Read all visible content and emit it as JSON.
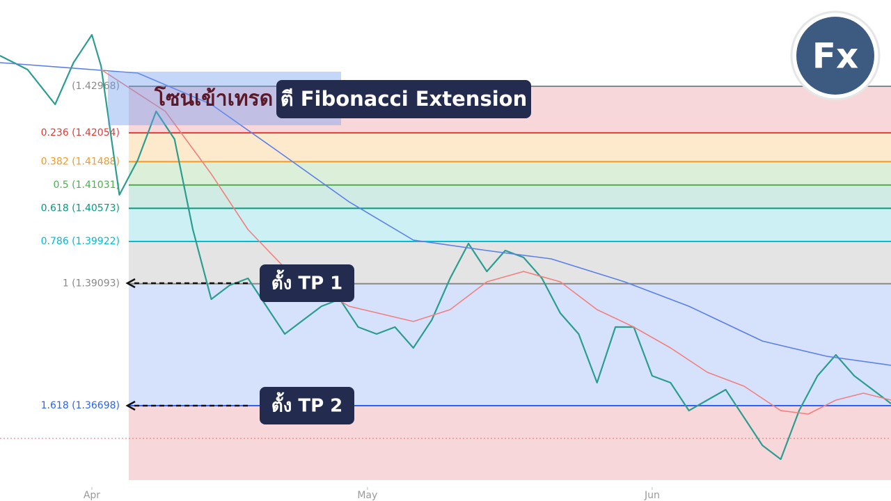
{
  "chart_data": {
    "type": "line",
    "xlim": [
      -10,
      87
    ],
    "ylim": [
      1.34827,
      1.44662
    ],
    "xticks": [
      {
        "value": 0,
        "label": "Apr"
      },
      {
        "value": 30,
        "label": "May"
      },
      {
        "value": 61,
        "label": "Jun"
      }
    ],
    "series": [
      {
        "color": "#2a9d8f",
        "x": [
          -10,
          -7,
          -4,
          -2,
          0,
          1,
          3,
          5,
          7,
          9,
          11,
          13,
          15,
          17,
          19,
          21,
          23,
          25,
          27,
          29,
          31,
          33,
          35,
          37,
          39,
          41,
          43,
          45,
          47,
          49,
          51,
          53,
          55,
          57,
          59,
          61,
          63,
          65,
          67,
          69,
          71,
          73,
          75,
          77,
          79,
          81,
          83,
          85,
          87
        ],
        "values": [
          1.43569,
          1.43296,
          1.42613,
          1.43432,
          1.43979,
          1.43364,
          1.40837,
          1.4152,
          1.42476,
          1.4193,
          1.40154,
          1.38788,
          1.39061,
          1.39198,
          1.38651,
          1.38105,
          1.38378,
          1.38651,
          1.38788,
          1.38242,
          1.38105,
          1.38242,
          1.37832,
          1.38378,
          1.39198,
          1.39881,
          1.39334,
          1.39744,
          1.39608,
          1.39198,
          1.38515,
          1.38105,
          1.37149,
          1.38242,
          1.38242,
          1.37285,
          1.37149,
          1.36602,
          1.36807,
          1.37012,
          1.36466,
          1.35919,
          1.35646,
          1.36602,
          1.37285,
          1.37695,
          1.37285,
          1.37012,
          1.36739
        ]
      },
      {
        "color": "#5b7fe8",
        "x": [
          -10,
          5,
          13,
          20,
          28,
          35,
          43,
          50,
          58,
          65,
          73,
          80,
          87
        ],
        "values": [
          1.43432,
          1.43228,
          1.42613,
          1.41725,
          1.407,
          1.39949,
          1.39744,
          1.3958,
          1.3913,
          1.38651,
          1.37968,
          1.37668,
          1.3749
        ]
      },
      {
        "color": "#f08080",
        "x": [
          1,
          8,
          13,
          17,
          21,
          28,
          35,
          39,
          43,
          47,
          51,
          55,
          59,
          63,
          67,
          71,
          75,
          78,
          81,
          84,
          87
        ],
        "values": [
          1.43296,
          1.42476,
          1.41247,
          1.40154,
          1.39403,
          1.38651,
          1.38351,
          1.38583,
          1.3913,
          1.39334,
          1.3913,
          1.38583,
          1.38242,
          1.37832,
          1.37354,
          1.37081,
          1.36602,
          1.36534,
          1.36807,
          1.36944,
          1.36807
        ]
      }
    ],
    "fib_levels": [
      {
        "value": 1.42968,
        "label": "(1.42968)"
      },
      {
        "value": 1.42054,
        "label": "0.236 (1.42054)"
      },
      {
        "value": 1.41488,
        "label": "0.382 (1.41488)"
      },
      {
        "value": 1.41031,
        "label": "0.5 (1.41031)"
      },
      {
        "value": 1.40573,
        "label": "0.618 (1.40573)"
      },
      {
        "value": 1.39922,
        "label": "0.786 (1.39922)"
      },
      {
        "value": 1.39093,
        "label": "1 (1.39093)"
      },
      {
        "value": 1.36698,
        "label": "1.618 (1.36698)"
      }
    ],
    "fib_colors": [
      "#888888",
      "#e53935",
      "#f59a23",
      "#4caf50",
      "#089981",
      "#00bcd4",
      "#888888",
      "#2962ff"
    ],
    "fib_fills": [
      "#f8d7da",
      "#fde9cc",
      "#dcefd8",
      "#cfebe4",
      "#cdf0f4",
      "#e4e4e4",
      "#d6e2fc",
      "#f8d7da"
    ],
    "zone_label": "โซนเข้าเทรด",
    "callout": "ตี Fibonacci Extension",
    "tp_labels": [
      "ตั้ง TP 1",
      "ตั้ง TP 2"
    ],
    "logo": "Fx"
  }
}
